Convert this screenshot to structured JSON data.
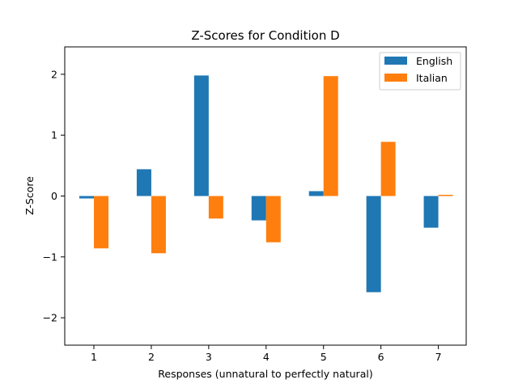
{
  "chart_data": {
    "type": "bar",
    "title": "Z-Scores for Condition D",
    "xlabel": "Responses (unnatural to perfectly natural)",
    "ylabel": "Z-Score",
    "categories": [
      "1",
      "2",
      "3",
      "4",
      "5",
      "6",
      "7"
    ],
    "yticks": [
      -2,
      -1,
      0,
      1,
      2
    ],
    "ytick_labels": [
      "−2",
      "−1",
      "0",
      "1",
      "2"
    ],
    "ylim": [
      -2.45,
      2.45
    ],
    "grid": false,
    "legend_position": "top-right",
    "series": [
      {
        "name": "English",
        "color": "#1f77b4",
        "values": [
          -0.04,
          0.44,
          1.98,
          -0.4,
          0.08,
          -1.58,
          -0.52
        ]
      },
      {
        "name": "Italian",
        "color": "#ff7f0e",
        "values": [
          -0.86,
          -0.94,
          -0.37,
          -0.76,
          1.97,
          0.89,
          0.02
        ]
      }
    ]
  }
}
